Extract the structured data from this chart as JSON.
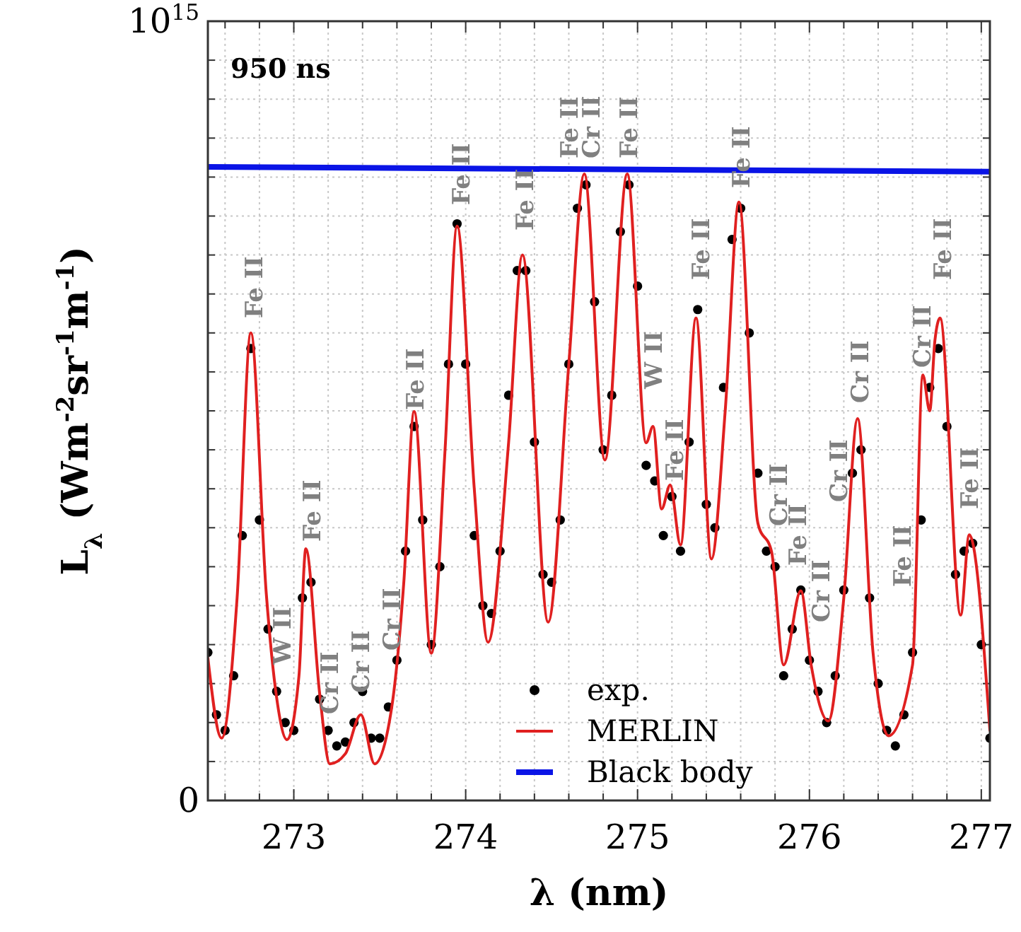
{
  "chart_data": {
    "type": "line",
    "xlabel": "λ (nm)",
    "ylabel": "L$_{λ}$ (Wm$^{-2}$sr$^{-1}$m$^{-1}$)",
    "xlim": [
      272.5,
      277.05
    ],
    "ylim": [
      0,
      1000000000000000.0
    ],
    "xticks": [
      {
        "value": 272.6,
        "label": null
      },
      {
        "value": 272.8,
        "label": null
      },
      273,
      {
        "value": 273.2,
        "label": null
      },
      {
        "value": 273.4,
        "label": null
      },
      {
        "value": 273.6,
        "label": null
      },
      {
        "value": 273.8,
        "label": null
      },
      274,
      {
        "value": 274.2,
        "label": null
      },
      {
        "value": 274.4,
        "label": null
      },
      {
        "value": 274.6,
        "label": null
      },
      {
        "value": 274.8,
        "label": null
      },
      275,
      {
        "value": 275.2,
        "label": null
      },
      {
        "value": 275.4,
        "label": null
      },
      {
        "value": 275.6,
        "label": null
      },
      {
        "value": 275.8,
        "label": null
      },
      276,
      {
        "value": 276.2,
        "label": null
      },
      {
        "value": 276.4,
        "label": null
      },
      {
        "value": 276.6,
        "label": null
      },
      {
        "value": 276.8,
        "label": null
      },
      277
    ],
    "yticks": [
      0,
      {
        "value": 50000000000000.0,
        "label": null
      },
      {
        "value": 100000000000000.0,
        "label": null
      },
      {
        "value": 150000000000000.0,
        "label": null
      },
      {
        "value": 200000000000000.0,
        "label": null
      },
      {
        "value": 250000000000000.0,
        "label": null
      },
      {
        "value": 300000000000000.0,
        "label": null
      },
      {
        "value": 350000000000000.0,
        "label": null
      },
      {
        "value": 400000000000000.0,
        "label": null
      },
      {
        "value": 450000000000000.0,
        "label": null
      },
      {
        "value": 500000000000000.0,
        "label": null
      },
      {
        "value": 550000000000000.0,
        "label": null
      },
      {
        "value": 600000000000000.0,
        "label": null
      },
      {
        "value": 650000000000000.0,
        "label": null
      },
      {
        "value": 700000000000000.0,
        "label": null
      },
      {
        "value": 750000000000000.0,
        "label": null
      },
      {
        "value": 800000000000000.0,
        "label": null
      },
      {
        "value": 850000000000000.0,
        "label": null
      },
      {
        "value": 900000000000000.0,
        "label": null
      },
      {
        "value": 950000000000000.0,
        "label": null
      },
      {
        "value": 1000000000000000.0,
        "label": "10$^{15}$"
      }
    ],
    "grid": true,
    "legend": "bottom",
    "series": [
      {
        "name": "exp.",
        "type": "scatter",
        "marker": "circle",
        "color": "#000000",
        "x": [
          272.5,
          272.55,
          272.6,
          272.65,
          272.7,
          272.75,
          272.8,
          272.85,
          272.9,
          272.95,
          273,
          273.05,
          273.1,
          273.15,
          273.2,
          273.25,
          273.3,
          273.35,
          273.4,
          273.45,
          273.5,
          273.55,
          273.6,
          273.65,
          273.7,
          273.75,
          273.8,
          273.85,
          273.9,
          273.95,
          274,
          274.05,
          274.1,
          274.15,
          274.2,
          274.25,
          274.3,
          274.35,
          274.4,
          274.45,
          274.5,
          274.55,
          274.6,
          274.65,
          274.7,
          274.75,
          274.8,
          274.85,
          274.9,
          274.95,
          275,
          275.05,
          275.1,
          275.15,
          275.2,
          275.25,
          275.3,
          275.35,
          275.4,
          275.45,
          275.5,
          275.55,
          275.6,
          275.65,
          275.7,
          275.75,
          275.8,
          275.85,
          275.9,
          275.95,
          276,
          276.05,
          276.1,
          276.15,
          276.2,
          276.25,
          276.3,
          276.35,
          276.4,
          276.45,
          276.5,
          276.55,
          276.6,
          276.65,
          276.7,
          276.75,
          276.8,
          276.85,
          276.9,
          276.95,
          277,
          277.05
        ],
        "values": [
          190000000000000.0,
          110000000000000.0,
          90000000000000.0,
          160000000000000.0,
          340000000000000.0,
          580000000000000.0,
          360000000000000.0,
          220000000000000.0,
          140000000000000.0,
          100000000000000.0,
          90000000000000.0,
          260000000000000.0,
          280000000000000.0,
          130000000000000.0,
          90000000000000.0,
          70000000000000.0,
          75000000000000.0,
          100000000000000.0,
          140000000000000.0,
          80000000000000.0,
          80000000000000.0,
          120000000000000.0,
          180000000000000.0,
          320000000000000.0,
          480000000000000.0,
          360000000000000.0,
          200000000000000.0,
          300000000000000.0,
          560000000000000.0,
          740000000000000.0,
          560000000000000.0,
          340000000000000.0,
          250000000000000.0,
          240000000000000.0,
          320000000000000.0,
          520000000000000.0,
          680000000000000.0,
          680000000000000.0,
          460000000000000.0,
          290000000000000.0,
          280000000000000.0,
          360000000000000.0,
          560000000000000.0,
          760000000000000.0,
          790000000000000.0,
          640000000000000.0,
          450000000000000.0,
          520000000000000.0,
          730000000000000.0,
          790000000000000.0,
          660000000000000.0,
          430000000000000.0,
          410000000000000.0,
          340000000000000.0,
          390000000000000.0,
          320000000000000.0,
          460000000000000.0,
          630000000000000.0,
          380000000000000.0,
          350000000000000.0,
          530000000000000.0,
          720000000000000.0,
          760000000000000.0,
          600000000000000.0,
          420000000000000.0,
          320000000000000.0,
          300000000000000.0,
          160000000000000.0,
          220000000000000.0,
          270000000000000.0,
          180000000000000.0,
          140000000000000.0,
          100000000000000.0,
          160000000000000.0,
          270000000000000.0,
          420000000000000.0,
          450000000000000.0,
          260000000000000.0,
          150000000000000.0,
          90000000000000.0,
          70000000000000.0,
          110000000000000.0,
          190000000000000.0,
          360000000000000.0,
          530000000000000.0,
          580000000000000.0,
          480000000000000.0,
          290000000000000.0,
          320000000000000.0,
          330000000000000.0,
          200000000000000.0,
          80000000000000.0
        ]
      },
      {
        "name": "MERLIN",
        "type": "line",
        "color": "#e02020",
        "x": [
          272.5,
          272.58,
          272.67,
          272.75,
          272.84,
          272.9,
          272.96,
          273.03,
          273.07,
          273.15,
          273.21,
          273.3,
          273.39,
          273.47,
          273.57,
          273.64,
          273.7,
          273.8,
          273.88,
          273.95,
          274.05,
          274.13,
          274.25,
          274.33,
          274.48,
          274.6,
          274.69,
          274.81,
          274.94,
          275.05,
          275.09,
          275.14,
          275.19,
          275.25,
          275.34,
          275.43,
          275.51,
          275.59,
          275.7,
          275.78,
          275.85,
          275.95,
          276.01,
          276.11,
          276.2,
          276.28,
          276.37,
          276.46,
          276.6,
          276.66,
          276.7,
          276.73,
          276.76,
          276.88,
          276.93,
          277.05
        ],
        "values": [
          183000000000000.0,
          80000000000000.0,
          260000000000000.0,
          600000000000000.0,
          265000000000000.0,
          132000000000000.0,
          78000000000000.0,
          160000000000000.0,
          323000000000000.0,
          138000000000000.0,
          47000000000000.0,
          60000000000000.0,
          110000000000000.0,
          47000000000000.0,
          120000000000000.0,
          280000000000000.0,
          499000000000000.0,
          189000000000000.0,
          450000000000000.0,
          737000000000000.0,
          400000000000000.0,
          203000000000000.0,
          460000000000000.0,
          700000000000000.0,
          229000000000000.0,
          560000000000000.0,
          804000000000000.0,
          437000000000000.0,
          804000000000000.0,
          459000000000000.0,
          480000000000000.0,
          374000000000000.0,
          405000000000000.0,
          328000000000000.0,
          619000000000000.0,
          310000000000000.0,
          500000000000000.0,
          768000000000000.0,
          356000000000000.0,
          319000000000000.0,
          174000000000000.0,
          269000000000000.0,
          174000000000000.0,
          102000000000000.0,
          260000000000000.0,
          490000000000000.0,
          190000000000000.0,
          83000000000000.0,
          174000000000000.0,
          546000000000000.0,
          500000000000000.0,
          590000000000000.0,
          619000000000000.0,
          238000000000000.0,
          341000000000000.0,
          90000000000000.0
        ]
      },
      {
        "name": "Black body",
        "type": "line",
        "color": "#0a14e6",
        "x": [
          272.5,
          277.05
        ],
        "values": [
          813000000000000.0,
          807000000000000.0
        ]
      }
    ],
    "annotations": [
      "950 ns",
      "Fe II",
      "W II",
      "Fe II",
      "Cr II",
      "Cr II",
      "Cr II",
      "Fe II",
      "Fe II",
      "Fe II",
      "Fe II",
      "Cr II",
      "Fe II",
      "W II",
      "Fe II",
      "Fe II",
      "Fe II",
      "Cr II",
      "Fe II",
      "Cr II",
      "Cr II",
      "Cr II",
      "Fe II",
      "Cr II",
      "Fe II",
      "Fe II"
    ]
  }
}
